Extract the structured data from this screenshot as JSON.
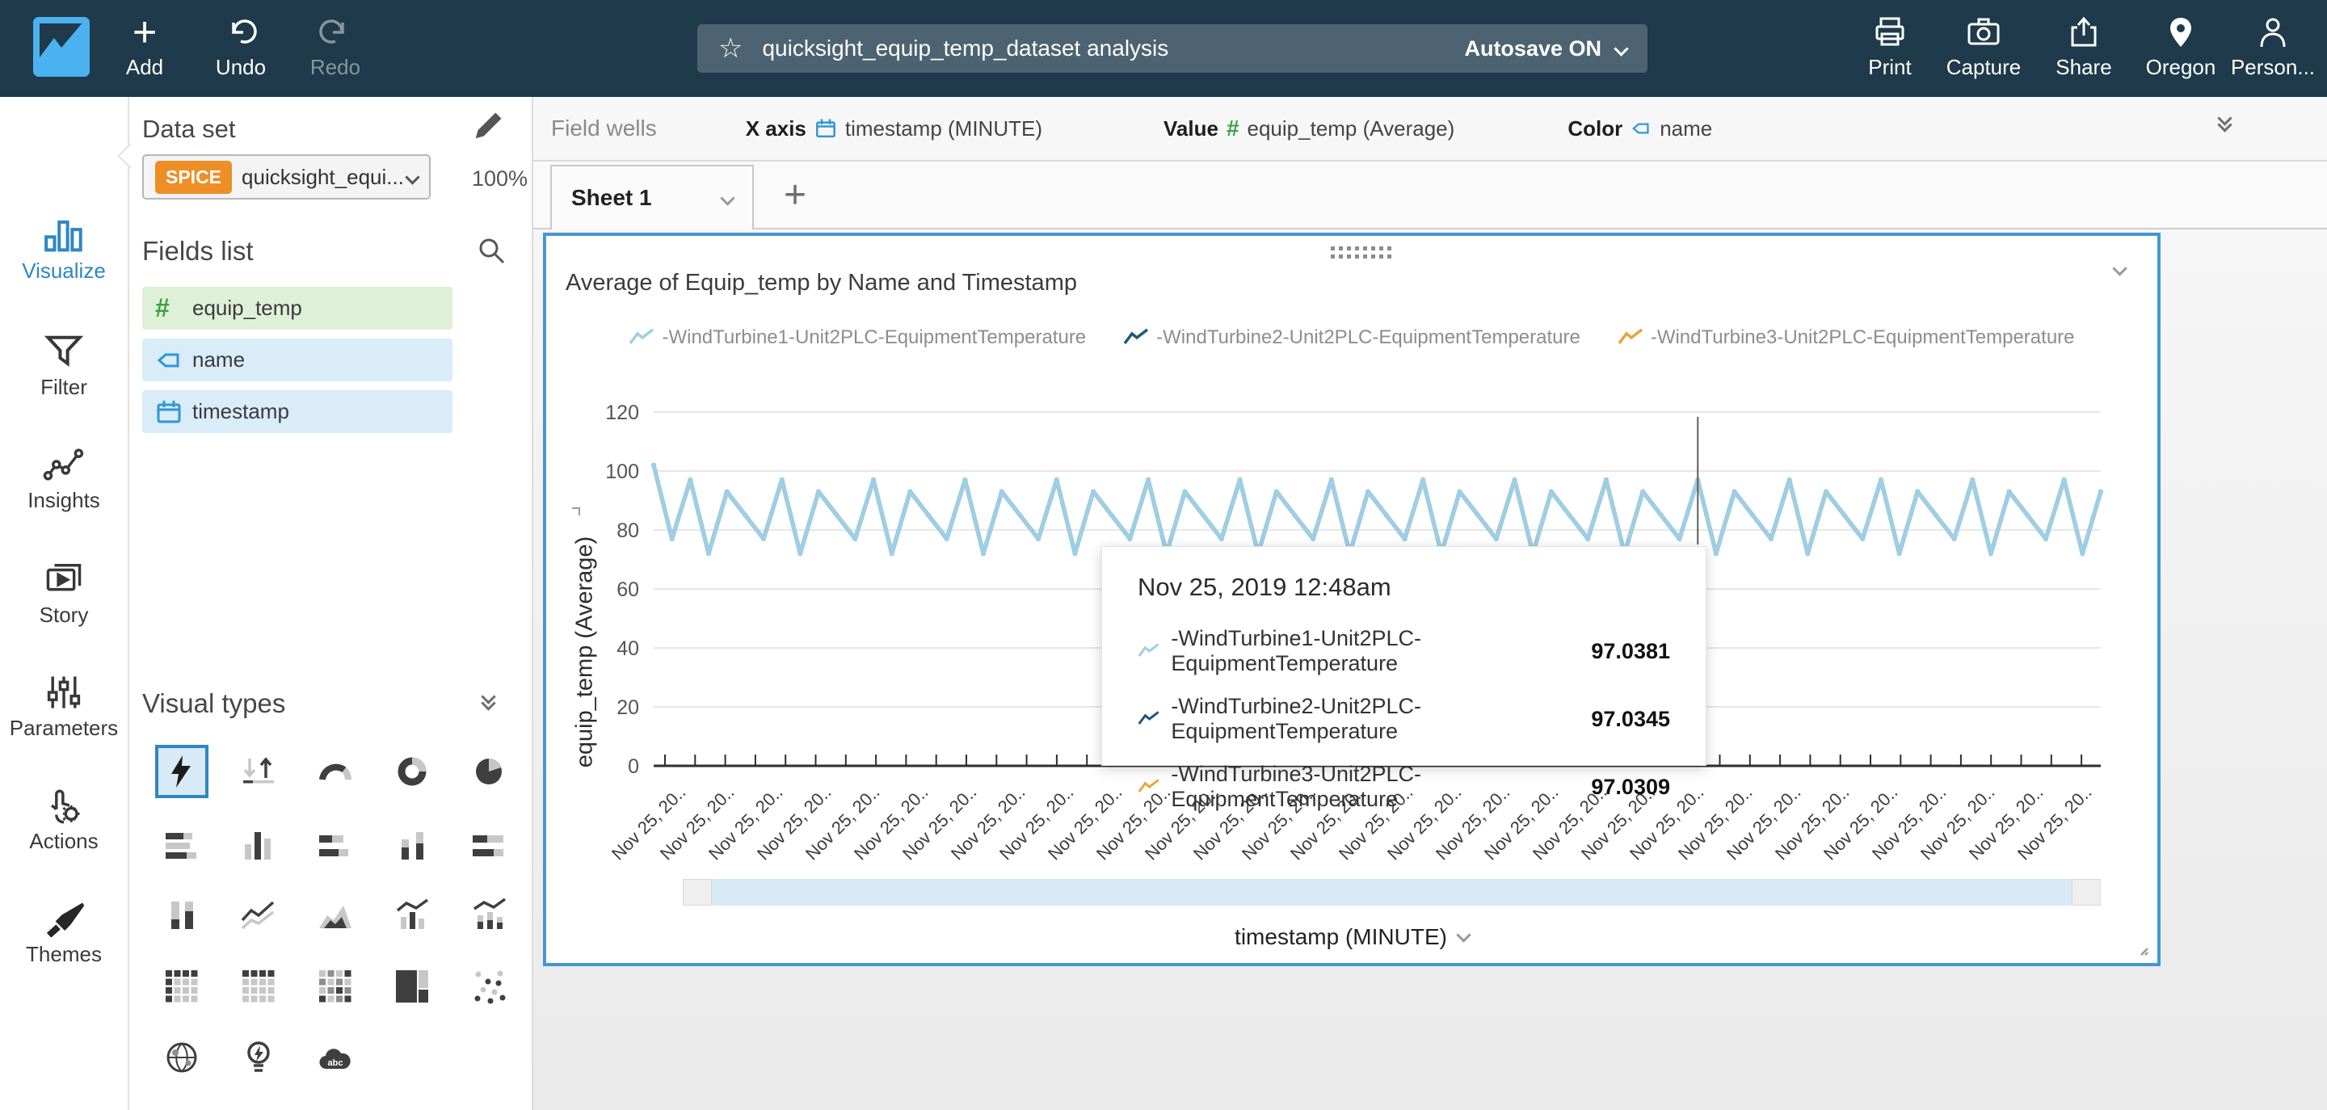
{
  "topbar": {
    "add_label": "Add",
    "undo_label": "Undo",
    "redo_label": "Redo",
    "analysis_title": "quicksight_equip_temp_dataset analysis",
    "autosave_label": "Autosave ON",
    "print_label": "Print",
    "capture_label": "Capture",
    "share_label": "Share",
    "region_label": "Oregon",
    "user_label": "Person..."
  },
  "sidebar": {
    "items": [
      {
        "label": "Visualize"
      },
      {
        "label": "Filter"
      },
      {
        "label": "Insights"
      },
      {
        "label": "Story"
      },
      {
        "label": "Parameters"
      },
      {
        "label": "Actions"
      },
      {
        "label": "Themes"
      }
    ]
  },
  "dataset_panel": {
    "heading": "Data set",
    "spice_badge": "SPICE",
    "dataset_name": "quicksight_equi...",
    "import_pct": "100%",
    "fields_heading": "Fields list",
    "fields": [
      {
        "name": "equip_temp",
        "type": "numeric"
      },
      {
        "name": "name",
        "type": "string"
      },
      {
        "name": "timestamp",
        "type": "date"
      }
    ],
    "visual_types_heading": "Visual types"
  },
  "field_wells": {
    "label": "Field wells",
    "x_axis_label": "X axis",
    "x_axis_value": "timestamp (MINUTE)",
    "value_label": "Value",
    "value_value": "equip_temp (Average)",
    "color_label": "Color",
    "color_value": "name"
  },
  "sheet_tabs": {
    "active_tab": "Sheet 1"
  },
  "widget": {
    "title": "Average of Equip_temp by Name and Timestamp",
    "x_axis_title": "timestamp (MINUTE)"
  },
  "tooltip": {
    "title": "Nov 25, 2019 12:48am",
    "rows": [
      {
        "name": "-WindTurbine1-Unit2PLC-EquipmentTemperature",
        "value": "97.0381"
      },
      {
        "name": "-WindTurbine2-Unit2PLC-EquipmentTemperature",
        "value": "97.0345"
      },
      {
        "name": "-WindTurbine3-Unit2PLC-EquipmentTemperature",
        "value": "97.0309"
      }
    ]
  },
  "chart_data": {
    "type": "line",
    "title": "Average of Equip_temp by Name and Timestamp",
    "xlabel": "timestamp (MINUTE)",
    "ylabel": "equip_temp (Average)",
    "ylim": [
      0,
      120
    ],
    "y_ticks": [
      0,
      20,
      40,
      60,
      80,
      100,
      120
    ],
    "grid": true,
    "legend_position": "top",
    "x_tick_label": "Nov 25, 20..",
    "x_tick_count": 30,
    "cursor_index": 57,
    "series": [
      {
        "name": "-WindTurbine1-Unit2PLC-EquipmentTemperature",
        "color": "#9dcfe6",
        "hover_value": 97.0381
      },
      {
        "name": "-WindTurbine2-Unit2PLC-EquipmentTemperature",
        "color": "#1f587a",
        "hover_value": 97.0345
      },
      {
        "name": "-WindTurbine3-Unit2PLC-EquipmentTemperature",
        "color": "#eba23f",
        "hover_value": 97.0309
      }
    ],
    "values": [
      102,
      77,
      97,
      72,
      93,
      85,
      77,
      97,
      72,
      93,
      85,
      77,
      97,
      72,
      93,
      85,
      77,
      97,
      72,
      93,
      85,
      77,
      97,
      72,
      93,
      85,
      77,
      97,
      72,
      93,
      85,
      77,
      97,
      72,
      93,
      85,
      77,
      97,
      72,
      93,
      85,
      77,
      97,
      72,
      93,
      85,
      77,
      97,
      72,
      93,
      85,
      77,
      97,
      72,
      93,
      85,
      77,
      97,
      72,
      93,
      85,
      77,
      97,
      72,
      93,
      85,
      77,
      97,
      72,
      93,
      85,
      77,
      97,
      72,
      93,
      85,
      77,
      97,
      72,
      93
    ]
  },
  "visual_types": {
    "order": [
      "autograph",
      "kpi",
      "gauge",
      "donut",
      "pie",
      "barh",
      "barv",
      "stackh",
      "stackv",
      "stackh100",
      "stackv100",
      "line",
      "area",
      "combo",
      "combo2",
      "pivot",
      "table",
      "heatmap",
      "treemap",
      "scatter",
      "map",
      "insight",
      "wordcloud"
    ],
    "selected": "autograph"
  }
}
